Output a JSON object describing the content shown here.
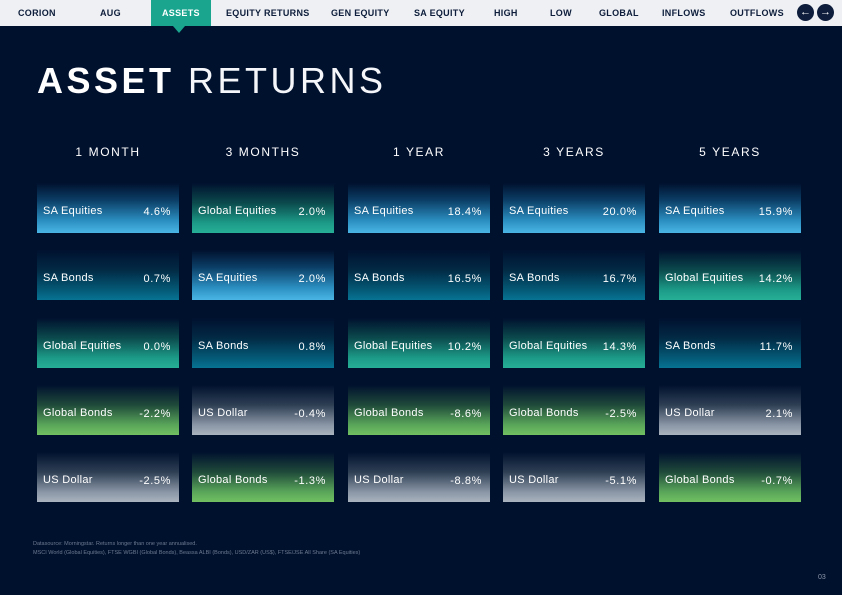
{
  "nav": {
    "brand": "CORION",
    "items": [
      "AUG",
      "ASSETS",
      "EQUITY RETURNS",
      "GEN EQUITY",
      "SA EQUITY",
      "HIGH",
      "LOW",
      "GLOBAL",
      "INFLOWS",
      "OUTFLOWS"
    ],
    "active": "ASSETS",
    "prev_glyph": "←",
    "next_glyph": "→"
  },
  "title": {
    "bold": "ASSET",
    "light": "RETURNS"
  },
  "periods": [
    "1 MONTH",
    "3 MONTHS",
    "1 YEAR",
    "3 YEARS",
    "5 YEARS"
  ],
  "columns": [
    [
      [
        "SA Equities",
        "4.6%"
      ],
      [
        "SA Bonds",
        "0.7%"
      ],
      [
        "Global Equities",
        "0.0%"
      ],
      [
        "Global Bonds",
        "-2.2%"
      ],
      [
        "US Dollar",
        "-2.5%"
      ]
    ],
    [
      [
        "Global Equities",
        "2.0%"
      ],
      [
        "SA Equities",
        "2.0%"
      ],
      [
        "SA Bonds",
        "0.8%"
      ],
      [
        "US Dollar",
        "-0.4%"
      ],
      [
        "Global Bonds",
        "-1.3%"
      ]
    ],
    [
      [
        "SA Equities",
        "18.4%"
      ],
      [
        "SA Bonds",
        "16.5%"
      ],
      [
        "Global Equities",
        "10.2%"
      ],
      [
        "Global Bonds",
        "-8.6%"
      ],
      [
        "US Dollar",
        "-8.8%"
      ]
    ],
    [
      [
        "SA Equities",
        "20.0%"
      ],
      [
        "SA Bonds",
        "16.7%"
      ],
      [
        "Global Equities",
        "14.3%"
      ],
      [
        "Global Bonds",
        "-2.5%"
      ],
      [
        "US Dollar",
        "-5.1%"
      ]
    ],
    [
      [
        "SA Equities",
        "15.9%"
      ],
      [
        "Global Equities",
        "14.2%"
      ],
      [
        "SA Bonds",
        "11.7%"
      ],
      [
        "US Dollar",
        "2.1%"
      ],
      [
        "Global Bonds",
        "-0.7%"
      ]
    ]
  ],
  "asset_colors": {
    "SA Equities": "#4ab6e6",
    "SA Bonds": "#077393",
    "Global Equities": "#27af97",
    "Global Bonds": "#71c060",
    "US Dollar": "#aab3bf"
  },
  "footnote": {
    "line1": "Datasource: Morningstar. Returns longer than one year annualised.",
    "line2": "MSCI World (Global Equities), FTSE WGBI (Global Bonds), Beassa ALBI (Bonds), USD/ZAR (US$), FTSE/JSE All Share (SA Equities)"
  },
  "page_number": "03"
}
